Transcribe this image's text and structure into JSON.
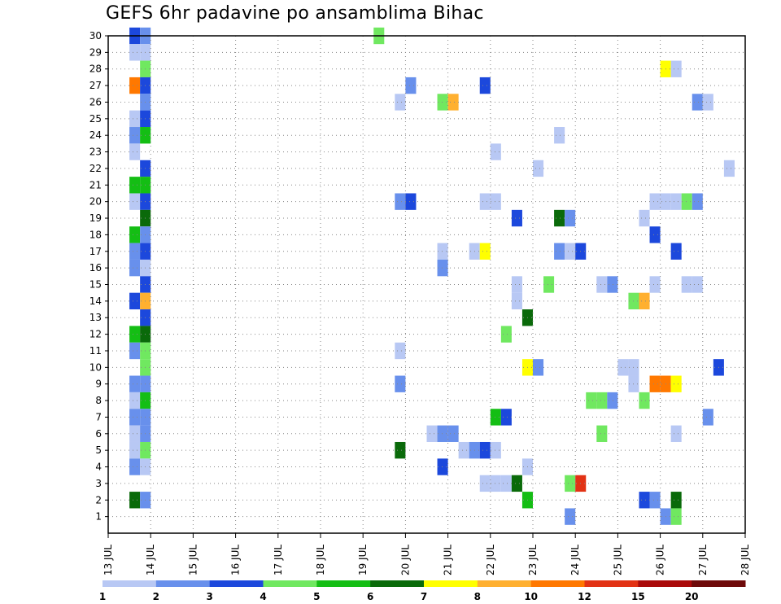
{
  "chart_data": {
    "type": "heatmap",
    "title": "GEFS 6hr padavine po ansamblima Bihac",
    "xlabel": "",
    "ylabel": "",
    "x_ticks": [
      "13 JUL",
      "14 JUL",
      "15 JUL",
      "16 JUL",
      "17 JUL",
      "18 JUL",
      "19 JUL",
      "20 JUL",
      "21 JUL",
      "22 JUL",
      "23 JUL",
      "24 JUL",
      "25 JUL",
      "26 JUL",
      "27 JUL",
      "28 JUL"
    ],
    "x_range_days": [
      13,
      28
    ],
    "y_ticks": [
      1,
      2,
      3,
      4,
      5,
      6,
      7,
      8,
      9,
      10,
      11,
      12,
      13,
      14,
      15,
      16,
      17,
      18,
      19,
      20,
      21,
      22,
      23,
      24,
      25,
      26,
      27,
      28,
      29,
      30
    ],
    "y_range": [
      0,
      30
    ],
    "grid": true,
    "colorbar": {
      "labels": [
        "1",
        "2",
        "3",
        "4",
        "5",
        "6",
        "7",
        "8",
        "10",
        "12",
        "15",
        "20"
      ],
      "colors": [
        "#b8c8f4",
        "#6890ec",
        "#1c48dc",
        "#70e860",
        "#14be14",
        "#0a6a0a",
        "#ffff00",
        "#ffb030",
        "#ff7800",
        "#e23214",
        "#aa0a0a",
        "#6e0a0a"
      ]
    },
    "cells_note": "each cell: [member, day(start of 6h step), bin index 0..11 into colorbar.colors]",
    "cells": [
      [
        30,
        13.5,
        2
      ],
      [
        30,
        13.75,
        1
      ],
      [
        30,
        19.25,
        3
      ],
      [
        30,
        28.0,
        0
      ],
      [
        29,
        13.5,
        0
      ],
      [
        29,
        13.75,
        0
      ],
      [
        28,
        13.75,
        3
      ],
      [
        28,
        26.0,
        6
      ],
      [
        28,
        26.25,
        0
      ],
      [
        27,
        13.5,
        8
      ],
      [
        27,
        13.75,
        2
      ],
      [
        27,
        20.0,
        1
      ],
      [
        27,
        21.75,
        2
      ],
      [
        27,
        28.0,
        1
      ],
      [
        26,
        13.75,
        1
      ],
      [
        26,
        19.75,
        0
      ],
      [
        26,
        20.75,
        3
      ],
      [
        26,
        21.0,
        7
      ],
      [
        26,
        26.75,
        1
      ],
      [
        26,
        27.0,
        0
      ],
      [
        25,
        13.5,
        0
      ],
      [
        25,
        13.75,
        2
      ],
      [
        24,
        13.5,
        1
      ],
      [
        24,
        13.75,
        4
      ],
      [
        24,
        23.5,
        0
      ],
      [
        23,
        13.5,
        0
      ],
      [
        23,
        22.0,
        0
      ],
      [
        22,
        13.75,
        2
      ],
      [
        22,
        23.0,
        0
      ],
      [
        22,
        27.5,
        0
      ],
      [
        21,
        13.5,
        4
      ],
      [
        21,
        13.75,
        4
      ],
      [
        20,
        13.5,
        0
      ],
      [
        20,
        13.75,
        2
      ],
      [
        20,
        19.75,
        1
      ],
      [
        20,
        20.0,
        2
      ],
      [
        20,
        21.75,
        0
      ],
      [
        20,
        22.0,
        0
      ],
      [
        20,
        25.75,
        0
      ],
      [
        20,
        26.0,
        0
      ],
      [
        20,
        26.25,
        0
      ],
      [
        20,
        26.5,
        3
      ],
      [
        20,
        26.75,
        1
      ],
      [
        19,
        13.75,
        5
      ],
      [
        19,
        22.5,
        2
      ],
      [
        19,
        23.5,
        5
      ],
      [
        19,
        23.75,
        1
      ],
      [
        19,
        25.5,
        0
      ],
      [
        18,
        13.5,
        4
      ],
      [
        18,
        13.75,
        1
      ],
      [
        18,
        25.75,
        2
      ],
      [
        17,
        13.5,
        1
      ],
      [
        17,
        13.75,
        2
      ],
      [
        17,
        20.75,
        0
      ],
      [
        17,
        21.5,
        0
      ],
      [
        17,
        21.75,
        6
      ],
      [
        17,
        23.5,
        1
      ],
      [
        17,
        23.75,
        0
      ],
      [
        17,
        24.0,
        2
      ],
      [
        17,
        26.25,
        2
      ],
      [
        16,
        13.5,
        1
      ],
      [
        16,
        13.75,
        0
      ],
      [
        16,
        20.75,
        1
      ],
      [
        16,
        28.0,
        0
      ],
      [
        15,
        13.75,
        2
      ],
      [
        15,
        22.5,
        0
      ],
      [
        15,
        23.25,
        3
      ],
      [
        15,
        24.5,
        0
      ],
      [
        15,
        24.75,
        1
      ],
      [
        15,
        25.75,
        0
      ],
      [
        15,
        26.5,
        0
      ],
      [
        15,
        26.75,
        0
      ],
      [
        14,
        13.5,
        2
      ],
      [
        14,
        13.75,
        7
      ],
      [
        14,
        22.5,
        0
      ],
      [
        14,
        25.25,
        3
      ],
      [
        14,
        25.5,
        7
      ],
      [
        13,
        13.75,
        2
      ],
      [
        13,
        22.75,
        5
      ],
      [
        12,
        13.5,
        4
      ],
      [
        12,
        13.75,
        5
      ],
      [
        12,
        22.25,
        3
      ],
      [
        11,
        13.5,
        1
      ],
      [
        11,
        13.75,
        3
      ],
      [
        11,
        19.75,
        0
      ],
      [
        10,
        13.75,
        3
      ],
      [
        10,
        22.75,
        6
      ],
      [
        10,
        23.0,
        1
      ],
      [
        10,
        25.0,
        0
      ],
      [
        10,
        25.25,
        0
      ],
      [
        10,
        27.25,
        2
      ],
      [
        10,
        28.0,
        0
      ],
      [
        9,
        13.5,
        1
      ],
      [
        9,
        13.75,
        1
      ],
      [
        9,
        19.75,
        1
      ],
      [
        9,
        25.25,
        0
      ],
      [
        9,
        25.75,
        8
      ],
      [
        9,
        26.0,
        8
      ],
      [
        9,
        26.25,
        6
      ],
      [
        8,
        13.5,
        0
      ],
      [
        8,
        13.75,
        4
      ],
      [
        8,
        24.25,
        3
      ],
      [
        8,
        24.5,
        3
      ],
      [
        8,
        24.75,
        1
      ],
      [
        8,
        25.5,
        3
      ],
      [
        7,
        13.5,
        1
      ],
      [
        7,
        13.75,
        1
      ],
      [
        7,
        22.0,
        4
      ],
      [
        7,
        22.25,
        2
      ],
      [
        7,
        27.0,
        1
      ],
      [
        7,
        28.0,
        0
      ],
      [
        6,
        13.5,
        0
      ],
      [
        6,
        13.75,
        1
      ],
      [
        6,
        20.5,
        0
      ],
      [
        6,
        20.75,
        1
      ],
      [
        6,
        21.0,
        1
      ],
      [
        6,
        24.5,
        3
      ],
      [
        6,
        26.25,
        0
      ],
      [
        5,
        13.5,
        0
      ],
      [
        5,
        13.75,
        3
      ],
      [
        5,
        19.75,
        5
      ],
      [
        5,
        21.25,
        0
      ],
      [
        5,
        21.5,
        1
      ],
      [
        5,
        21.75,
        2
      ],
      [
        5,
        22.0,
        0
      ],
      [
        4,
        13.5,
        1
      ],
      [
        4,
        13.75,
        0
      ],
      [
        4,
        20.75,
        2
      ],
      [
        4,
        22.75,
        0
      ],
      [
        3,
        21.75,
        0
      ],
      [
        3,
        22.0,
        0
      ],
      [
        3,
        22.25,
        0
      ],
      [
        3,
        22.5,
        5
      ],
      [
        3,
        23.75,
        3
      ],
      [
        3,
        24.0,
        9
      ],
      [
        2,
        13.5,
        5
      ],
      [
        2,
        13.75,
        1
      ],
      [
        2,
        22.75,
        4
      ],
      [
        2,
        25.5,
        2
      ],
      [
        2,
        25.75,
        1
      ],
      [
        2,
        26.25,
        5
      ],
      [
        1,
        23.75,
        1
      ],
      [
        1,
        26.0,
        1
      ],
      [
        1,
        26.25,
        3
      ]
    ]
  }
}
